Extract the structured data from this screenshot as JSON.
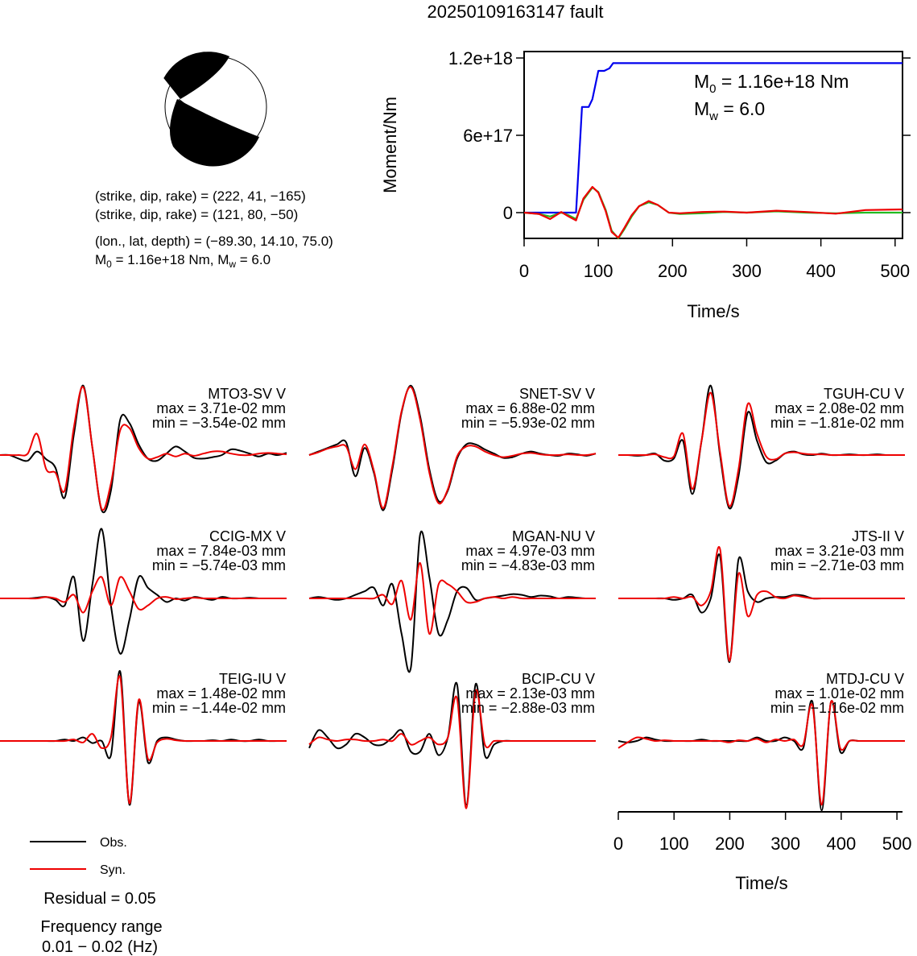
{
  "title": "20250109163147 fault",
  "mechanism": {
    "line1": "(strike, dip, rake) = (222, 41, −165)",
    "line2": "(strike, dip, rake) = (121, 80, −50)",
    "line3": "(lon., lat, depth) = (−89.30, 14.10, 75.0)",
    "m0_part": "M",
    "m0_sub": "0",
    "m0_rest": " = 1.16e+18 Nm, M",
    "mw_sub": "w",
    "mw_rest": " = 6.0"
  },
  "moment_panel": {
    "ylabel": "Moment/Nm",
    "xlabel": "Time/s",
    "yticks": [
      "0",
      "6e+17",
      "1.2e+18"
    ],
    "xticks": [
      "0",
      "100",
      "200",
      "300",
      "400",
      "500"
    ],
    "m0_label": "M",
    "m0_sub": "0",
    "m0_value": " = 1.16e+18 Nm",
    "mw_label": "M",
    "mw_sub": "w",
    "mw_value": " = 6.0"
  },
  "waveform_axis": {
    "xlabel": "Time/s",
    "xticks": [
      "0",
      "100",
      "200",
      "300",
      "400",
      "500"
    ]
  },
  "legend": {
    "obs": "Obs.",
    "syn": "Syn.",
    "residual": "Residual = 0.05",
    "freq_title": "Frequency range",
    "freq_value": "0.01 − 0.02 (Hz)"
  },
  "colors": {
    "observed": "#000000",
    "synthetic": "#ee0000",
    "moment_cumulative": "#0000ee",
    "moment_rate_green": "#22bb22",
    "moment_rate_red": "#ee0000"
  },
  "chart_data": [
    {
      "type": "line",
      "title": "",
      "xlabel": "Time/s",
      "ylabel": "Moment/Nm",
      "xlim": [
        0,
        510
      ],
      "ylim": [
        -2e+17,
        1.25e+18
      ],
      "series": [
        {
          "name": "cumulative moment",
          "color": "#0000ee",
          "x": [
            0,
            70,
            78,
            87,
            92,
            100,
            108,
            115,
            120,
            128,
            135,
            510
          ],
          "y": [
            0,
            0,
            8.2e+17,
            8.2e+17,
            8.8e+17,
            1.1e+18,
            1.1e+18,
            1.12e+18,
            1.16e+18,
            1.16e+18,
            1.16e+18,
            1.16e+18
          ]
        },
        {
          "color": "#22bb22",
          "x": [
            0,
            20,
            35,
            50,
            60,
            70,
            80,
            92,
            100,
            110,
            118,
            127,
            135,
            145,
            155,
            168,
            180,
            195,
            210,
            240,
            270,
            300,
            340,
            380,
            420,
            460,
            510
          ],
          "y": [
            0,
            -1e+16,
            -3e+16,
            0,
            -2e+16,
            -5e+16,
            1e+17,
            1.95e+17,
            1.6e+17,
            2e+16,
            -1.4e+17,
            -2e+17,
            -1.3e+17,
            -3e+16,
            5e+16,
            8e+16,
            6e+16,
            0,
            -1e+16,
            -5000000000000000.0,
            5000000000000000.0,
            0,
            1e+16,
            0,
            -5000000000000000.0,
            0,
            0
          ]
        },
        {
          "color": "#ee0000",
          "x": [
            0,
            20,
            35,
            50,
            60,
            70,
            80,
            92,
            100,
            110,
            118,
            127,
            135,
            145,
            155,
            168,
            180,
            195,
            210,
            240,
            270,
            300,
            340,
            380,
            420,
            460,
            510
          ],
          "y": [
            0,
            -1e+16,
            -5e+16,
            5000000000000000.0,
            -3e+16,
            -6e+16,
            1.1e+17,
            2e+17,
            1.55e+17,
            1e+16,
            -1.5e+17,
            -1.95e+17,
            -1.2e+17,
            -2e+16,
            5e+16,
            9e+16,
            6e+16,
            0,
            -5000000000000000.0,
            5000000000000000.0,
            8000000000000000.0,
            0,
            1.5e+16,
            5000000000000000.0,
            -8000000000000000.0,
            2e+16,
            2.5e+16
          ]
        }
      ]
    },
    {
      "type": "line",
      "xlabel": "Time/s",
      "xlim": [
        0,
        510
      ],
      "units": "mm",
      "stations": [
        {
          "name": "MTO3-SV V",
          "max": "max = 3.71e-02 mm",
          "min": "min = −3.54e-02 mm",
          "obs": [
            0,
            0,
            -0.05,
            -0.08,
            0.05,
            -0.06,
            -0.18,
            -0.6,
            0.3,
            0.98,
            0.1,
            -0.78,
            -0.5,
            0.5,
            0.45,
            0.15,
            -0.05,
            -0.08,
            0.02,
            0.12,
            0.05,
            -0.04,
            -0.05,
            -0.03,
            0,
            0.08,
            0.06,
            0.02,
            -0.02,
            0.02,
            0,
            0.03
          ],
          "syn": [
            0,
            0,
            0,
            0.02,
            0.3,
            -0.2,
            -0.25,
            -0.5,
            0.4,
            0.96,
            0.1,
            -0.76,
            -0.4,
            0.35,
            0.38,
            0.1,
            -0.05,
            -0.03,
            0.02,
            -0.02,
            0.02,
            -0.01,
            0.02,
            0.05,
            0.05,
            0.02,
            0,
            0,
            0.02,
            0.03,
            0.02,
            0.01
          ]
        },
        {
          "name": "SNET-SV V",
          "max": "max = 6.88e-02 mm",
          "min": "min = −5.93e-02 mm",
          "obs": [
            0,
            0.05,
            0.1,
            0.15,
            0.18,
            -0.3,
            0.1,
            -0.25,
            -0.78,
            -0.2,
            0.6,
            0.98,
            0.55,
            -0.2,
            -0.65,
            -0.5,
            -0.05,
            0.15,
            0.15,
            0.08,
            0.02,
            -0.04,
            -0.03,
            0.02,
            0.05,
            0.02,
            0,
            -0.01,
            0.02,
            0.01,
            -0.01,
            0.02
          ],
          "syn": [
            0,
            0.04,
            0.09,
            0.12,
            0.12,
            -0.2,
            0.15,
            -0.22,
            -0.75,
            -0.15,
            0.62,
            0.96,
            0.5,
            -0.25,
            -0.68,
            -0.48,
            -0.02,
            0.12,
            0.12,
            0.05,
            0,
            -0.03,
            -0.01,
            0.02,
            0.03,
            0.01,
            0,
            0,
            0.01,
            0,
            0,
            0.02
          ]
        },
        {
          "name": "TGUH-CU V",
          "max": "max = 2.08e-02 mm",
          "min": "min = −1.81e-02 mm",
          "obs": [
            0,
            0,
            -0.01,
            0,
            0.02,
            -0.08,
            -0.05,
            0.2,
            -0.55,
            0.2,
            0.98,
            0.0,
            -0.75,
            -0.3,
            0.6,
            0.2,
            -0.1,
            -0.08,
            0.02,
            0.05,
            0.01,
            0,
            0.02,
            0,
            0,
            0.01,
            0,
            0,
            0.01,
            0,
            0,
            0
          ],
          "syn": [
            0,
            0,
            0,
            0,
            0.01,
            -0.03,
            -0.02,
            0.3,
            -0.48,
            0.2,
            0.88,
            0.05,
            -0.72,
            -0.2,
            0.72,
            0.3,
            -0.02,
            -0.06,
            0.02,
            0.04,
            0.02,
            0.01,
            0.01,
            0,
            0,
            0,
            0,
            0,
            0,
            0,
            0,
            0
          ]
        },
        {
          "name": "CCIG-MX V",
          "max": "max = 7.84e-03 mm",
          "min": "min = −5.74e-03 mm",
          "obs": [
            0,
            0,
            0,
            0,
            0.01,
            0.02,
            -0.02,
            -0.1,
            0.3,
            -0.6,
            0.2,
            0.98,
            -0.1,
            -0.78,
            -0.3,
            0.3,
            0.15,
            0.05,
            -0.05,
            0,
            -0.03,
            0.02,
            0,
            -0.02,
            0.02,
            0,
            0,
            0.01,
            0,
            0,
            0,
            0
          ],
          "syn": [
            0,
            0,
            0,
            0,
            0,
            0.02,
            0,
            -0.05,
            0.05,
            -0.2,
            0.1,
            0.3,
            -0.1,
            0.3,
            0.1,
            -0.15,
            -0.1,
            0,
            0.02,
            -0.01,
            0,
            0.01,
            0,
            0,
            0,
            0,
            0,
            0,
            0,
            0,
            0,
            0
          ]
        },
        {
          "name": "MGAN-NU V",
          "max": "max = 4.97e-03 mm",
          "min": "min = −4.83e-03 mm",
          "obs": [
            0,
            0.02,
            0,
            -0.02,
            0,
            0.05,
            0.1,
            0.15,
            -0.1,
            0.2,
            -0.5,
            -0.98,
            0.9,
            0.3,
            -0.5,
            -0.3,
            0.1,
            0.15,
            -0.02,
            0,
            0.02,
            0.04,
            0.06,
            0.05,
            0.02,
            0.04,
            0.03,
            0,
            0.02,
            0.01,
            0,
            0
          ],
          "syn": [
            0,
            0,
            0,
            0,
            0,
            0,
            0,
            0,
            0.05,
            -0.08,
            0.25,
            -0.3,
            0.5,
            -0.5,
            0.2,
            0.2,
            0.1,
            -0.05,
            -0.05,
            0,
            0.02,
            0,
            0.02,
            0,
            0,
            0,
            0,
            0,
            0,
            0,
            0,
            0
          ]
        },
        {
          "name": "JTS-II V",
          "max": "max = 3.21e-03 mm",
          "min": "min = −2.71e-03 mm",
          "obs": [
            0,
            0,
            0,
            0,
            0,
            0,
            -0.02,
            0,
            0.05,
            -0.2,
            0.0,
            0.6,
            -0.9,
            0.55,
            0.1,
            -0.05,
            0,
            0.02,
            0.02,
            0.05,
            0.04,
            0,
            0,
            0,
            0,
            0,
            0,
            0,
            0,
            0,
            0,
            0
          ],
          "syn": [
            0,
            0,
            0,
            0,
            0,
            0,
            0.02,
            0,
            0.02,
            -0.1,
            0.1,
            0.7,
            -0.88,
            0.35,
            -0.25,
            0.05,
            0.1,
            0.02,
            0,
            0.04,
            0.02,
            0,
            0,
            0,
            0,
            0,
            0,
            0,
            0,
            0,
            0,
            0
          ]
        },
        {
          "name": "TEIG-IU V",
          "max": "max = 1.48e-02 mm",
          "min": "min = −1.44e-02 mm",
          "obs": [
            0,
            0,
            0,
            0,
            0,
            0,
            0,
            0.02,
            0.0,
            0.05,
            -0.03,
            0,
            -0.2,
            0.98,
            -0.9,
            0.55,
            -0.3,
            0.0,
            0.05,
            0.02,
            0,
            0,
            0,
            0.01,
            0,
            0.02,
            0,
            0,
            0.02,
            0,
            0,
            0
          ],
          "syn": [
            0,
            0,
            0,
            0,
            0,
            0,
            0,
            0,
            0.02,
            -0.02,
            0.1,
            -0.1,
            0.05,
            0.9,
            -0.88,
            0.58,
            -0.25,
            -0.02,
            0.03,
            0.01,
            0,
            0,
            0,
            0,
            0,
            0,
            0,
            0,
            0,
            0,
            0,
            0
          ]
        },
        {
          "name": "BCIP-CU V",
          "max": "max = 2.13e-03 mm",
          "min": "min = −2.88e-03 mm",
          "obs": [
            -0.1,
            0.15,
            0.05,
            -0.1,
            -0.05,
            0.1,
            0.05,
            -0.05,
            -0.05,
            0.05,
            0.15,
            -0.15,
            -0.15,
            0.1,
            -0.2,
            0.05,
            0.8,
            -0.9,
            0.8,
            -0.2,
            -0.05,
            0,
            0,
            0,
            0,
            0,
            0,
            0,
            0,
            0,
            0,
            0
          ],
          "syn": [
            -0.05,
            0.05,
            0.02,
            0,
            0.02,
            0.02,
            0,
            0,
            0.02,
            0,
            0.1,
            -0.05,
            0,
            0.05,
            -0.05,
            0.05,
            0.6,
            -0.95,
            0.7,
            -0.05,
            0.0,
            0,
            0,
            0,
            0,
            0,
            0,
            0,
            0,
            0,
            0,
            0
          ]
        },
        {
          "name": "MTDJ-CU V",
          "max": "max = 1.01e-02 mm",
          "min": "min = −1.16e-02 mm",
          "obs": [
            0,
            -0.02,
            0,
            0.05,
            0.02,
            0,
            0,
            0,
            0,
            0.02,
            0,
            0,
            0,
            0,
            0,
            0.05,
            0,
            0,
            0.05,
            0,
            -0.1,
            0.55,
            -0.98,
            0.55,
            -0.15,
            0,
            0,
            0,
            0,
            0,
            0,
            0
          ],
          "syn": [
            -0.1,
            -0.02,
            0.05,
            0.03,
            0,
            0.01,
            0,
            0,
            0,
            0,
            0,
            0,
            -0.02,
            0.01,
            0,
            0.03,
            -0.02,
            0.02,
            0,
            0.02,
            -0.05,
            0.5,
            -0.9,
            0.55,
            -0.1,
            0,
            0,
            0,
            0,
            0,
            0,
            0
          ]
        }
      ]
    }
  ]
}
